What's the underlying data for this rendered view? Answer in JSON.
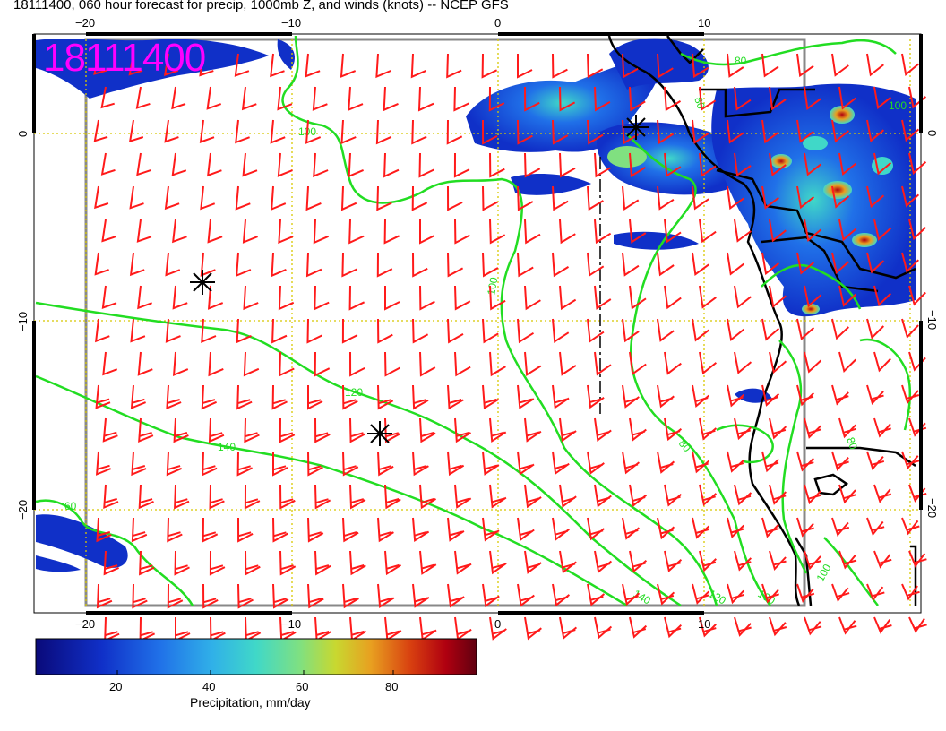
{
  "title": "18111400, 060 hour forecast for precip, 1000mb Z, and winds (knots) -- NCEP GFS",
  "stamp": "18111400",
  "axes": {
    "lon_ticks": [
      {
        "value": -20,
        "label": "−20"
      },
      {
        "value": -10,
        "label": "−10"
      },
      {
        "value": 0,
        "label": "0"
      },
      {
        "value": 10,
        "label": "10"
      }
    ],
    "lat_ticks": [
      {
        "value": 0,
        "label": "0"
      },
      {
        "value": -10,
        "label": "−10"
      },
      {
        "value": -20,
        "label": "−20"
      }
    ]
  },
  "contours": {
    "color": "#22dd22",
    "labels": [
      "100",
      "100",
      "120",
      "140",
      "60",
      "80",
      "80",
      "80",
      "140",
      "120",
      "100",
      "100",
      "80",
      "100"
    ]
  },
  "colorbar": {
    "label": "Precipitation, mm/day",
    "ticks": [
      "20",
      "40",
      "60",
      "80"
    ],
    "colors": [
      "#0a0a7a",
      "#1030c8",
      "#2070e8",
      "#30b0e8",
      "#40d8c8",
      "#80e080",
      "#c8d830",
      "#e8a020",
      "#d84010",
      "#b00010",
      "#600010"
    ]
  },
  "wind_barb_color": "#ff1a1a",
  "markers": [
    "low-pressure-asterisk",
    "low-pressure-asterisk",
    "low-pressure-asterisk"
  ]
}
